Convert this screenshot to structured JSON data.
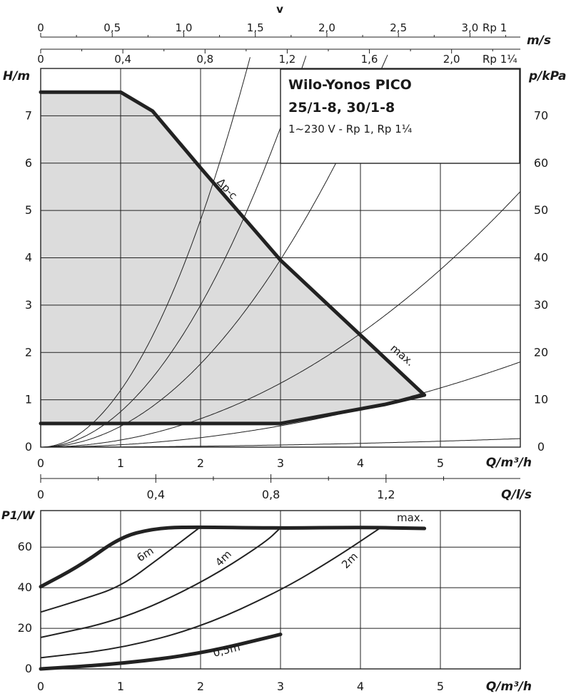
{
  "chart_data": [
    {
      "type": "line",
      "title": "Wilo-Yonos PICO",
      "subtitle": "25/1-8, 30/1-8",
      "subtitle2": "1~230 V - Rp 1, Rp 1¼",
      "ylabel": "H/m",
      "y2label": "p/kPa",
      "xlabel": "Q/m³/h",
      "top_axis_title": "v",
      "top_axis_unit": "m/s",
      "top_axis1_label": "Rp 1",
      "top_axis2_label": "Rp 1¼",
      "top_axis1_ticks": [
        "0",
        "0,5",
        "1,0",
        "1,5",
        "2,0",
        "2,5",
        "3,0"
      ],
      "top_axis2_ticks": [
        "0",
        "0,4",
        "0,8",
        "1,2",
        "1,6",
        "2,0"
      ],
      "y_ticks": [
        "0",
        "1",
        "2",
        "3",
        "4",
        "5",
        "6",
        "7"
      ],
      "y2_ticks": [
        "0",
        "10",
        "20",
        "30",
        "40",
        "50",
        "60",
        "70"
      ],
      "x_ticks": [
        "0",
        "1",
        "2",
        "3",
        "4",
        "5"
      ],
      "xlim": [
        0,
        6
      ],
      "ylim": [
        0,
        8
      ],
      "y2lim": [
        0,
        80
      ],
      "grid": true,
      "series": [
        {
          "name": "Δp-c",
          "x": [
            0,
            1.0,
            1.4,
            2.0,
            3.0,
            4.8
          ],
          "y": [
            7.5,
            7.5,
            7.1,
            5.9,
            3.95,
            1.1
          ]
        },
        {
          "name": "max.",
          "x": [
            4.8,
            4.3,
            3.0,
            0
          ],
          "y": [
            1.1,
            0.9,
            0.5,
            0.5
          ]
        }
      ],
      "system_curves": [
        0.005,
        1.2,
        0.75,
        0.44,
        0.15,
        0.05
      ]
    },
    {
      "type": "line",
      "xlabel": "Q/m³/h",
      "x2label": "Q/l/s",
      "ylabel": "P1/W",
      "x2_ticks": [
        "0",
        "0,4",
        "0,8",
        "1,2"
      ],
      "y_ticks": [
        "0",
        "20",
        "40",
        "60"
      ],
      "x_ticks": [
        "0",
        "1",
        "2",
        "3",
        "4",
        "5"
      ],
      "xlim": [
        0,
        6
      ],
      "ylim": [
        0,
        78
      ],
      "grid": true,
      "series": [
        {
          "name": "max.",
          "x": [
            0,
            0.5,
            1.0,
            1.4,
            1.8,
            3.0,
            4.0,
            4.8
          ],
          "y": [
            40.5,
            51,
            65,
            69,
            70,
            69.3,
            69.8,
            69.2
          ]
        },
        {
          "name": "6m",
          "x": [
            0,
            0.5,
            1.0,
            1.5,
            2.0
          ],
          "y": [
            28,
            34,
            40.5,
            55,
            70
          ]
        },
        {
          "name": "4m",
          "x": [
            0,
            1.0,
            2.0,
            2.8,
            3.0
          ],
          "y": [
            15.5,
            24,
            42,
            62,
            69.5
          ]
        },
        {
          "name": "2m",
          "x": [
            0,
            1.0,
            2.0,
            3.0,
            3.7,
            4.25
          ],
          "y": [
            5.5,
            10,
            20.5,
            38.5,
            55,
            69.5
          ]
        },
        {
          "name": "0,5m",
          "x": [
            0,
            1.0,
            2.0,
            3.0
          ],
          "y": [
            0,
            2.5,
            7.5,
            17
          ]
        }
      ]
    }
  ]
}
